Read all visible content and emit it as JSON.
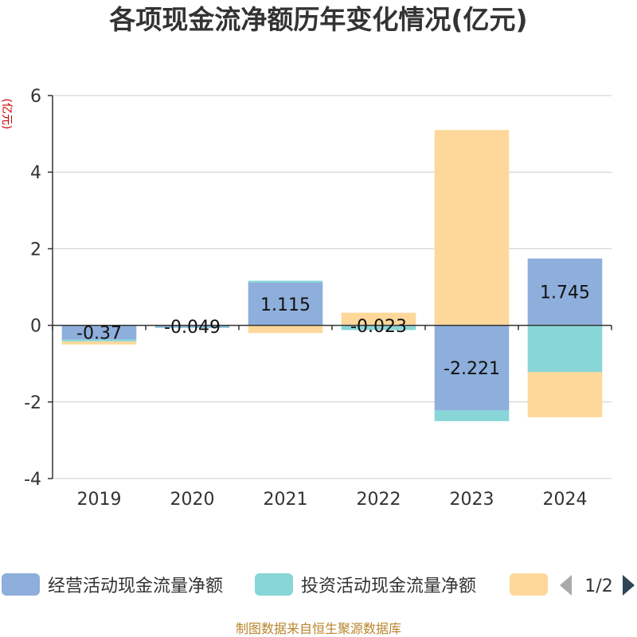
{
  "chart_data": {
    "type": "bar",
    "title": "各项现金流净额历年变化情况(亿元)",
    "ylabel": "(亿元)",
    "categories": [
      "2019",
      "2020",
      "2021",
      "2022",
      "2023",
      "2024"
    ],
    "ylim": [
      -4,
      6
    ],
    "yticks": [
      6,
      4,
      2,
      0,
      -2,
      -4
    ],
    "stacked": true,
    "grid": true,
    "series": [
      {
        "name": "经营活动现金流量净额",
        "color": "#8eaedb",
        "values": [
          -0.37,
          -0.049,
          1.115,
          -0.023,
          -2.221,
          1.745
        ]
      },
      {
        "name": "投资活动现金流量净额",
        "color": "#88d6d8",
        "values": [
          -0.05,
          -0.02,
          0.05,
          -0.1,
          -0.28,
          -1.22
        ]
      },
      {
        "name": "",
        "color": "#fdd89a",
        "values": [
          -0.08,
          0.01,
          -0.2,
          0.33,
          5.1,
          -1.18
        ]
      }
    ],
    "data_labels": [
      "-0.37",
      "-0.049",
      "1.115",
      "-0.023",
      "-2.221",
      "1.745"
    ],
    "legend": {
      "placement": "bottom",
      "items": [
        "经营活动现金流量净额",
        "投资活动现金流量净额",
        ""
      ],
      "page": "1/2"
    }
  },
  "source": "制图数据来自恒生聚源数据库"
}
